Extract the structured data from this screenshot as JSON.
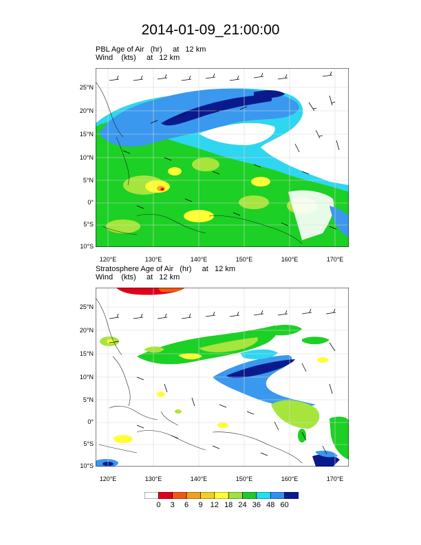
{
  "title": "2014-01-09_21:00:00",
  "panels": [
    {
      "id": "pbl",
      "field_line": "PBL Age of Air   (hr)     at   12 km",
      "wind_line": "Wind    (kts)     at   12 km",
      "lat_ticks": [
        "25°N",
        "20°N",
        "15°N",
        "10°N",
        "5°N",
        "0°",
        "5°S",
        "10°S"
      ],
      "lon_ticks": [
        "120°E",
        "130°E",
        "140°E",
        "150°E",
        "160°E",
        "170°E"
      ]
    },
    {
      "id": "strat",
      "field_line": "Stratosphere Age of Air   (hr)     at   12 km",
      "wind_line": "Wind    (kts)     at   12 km",
      "lat_ticks": [
        "25°N",
        "20°N",
        "15°N",
        "10°N",
        "5°N",
        "0°",
        "5°S",
        "10°S"
      ],
      "lon_ticks": [
        "120°E",
        "130°E",
        "140°E",
        "150°E",
        "160°E",
        "170°E"
      ]
    }
  ],
  "colorbar": {
    "labels": [
      "0",
      "3",
      "6",
      "9",
      "12",
      "18",
      "24",
      "36",
      "48",
      "60"
    ],
    "colors": [
      "#ffffff",
      "#e0001c",
      "#f05a10",
      "#f0a020",
      "#f0d020",
      "#ffff30",
      "#a0e040",
      "#20c830",
      "#20e0f0",
      "#3090f0",
      "#0a1a8c"
    ]
  },
  "palette": {
    "ocean_blue": "#3a98ee",
    "light_blue": "#2fd6f0",
    "navy": "#0a1a8c",
    "green": "#1cd025",
    "light_green": "#a6e53c",
    "yellow": "#ffff33",
    "orange": "#f5a623",
    "red": "#e0001c"
  }
}
